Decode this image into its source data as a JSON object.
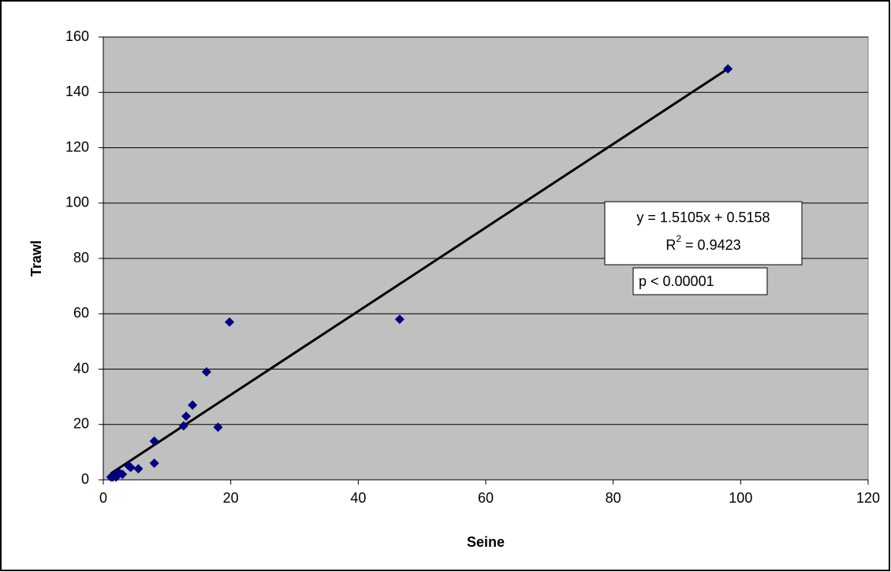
{
  "chart_data": {
    "type": "scatter",
    "x_label": "Seine",
    "y_label": "Trawl",
    "x": [
      98,
      46.5,
      19.8,
      16.2,
      14,
      13,
      12.6,
      18,
      8,
      8,
      5.5,
      4.3,
      4,
      3,
      2.5,
      2,
      1.5,
      1.2,
      2
    ],
    "series": [
      {
        "name": "Trawl",
        "color": "#000080",
        "values": [
          148.5,
          58,
          57,
          39,
          27,
          23,
          19.5,
          19,
          14,
          6,
          4,
          4.5,
          5,
          2,
          2.5,
          2,
          1,
          1,
          1
        ]
      }
    ],
    "xlim": [
      0,
      120
    ],
    "xticks": [
      0,
      20,
      40,
      60,
      80,
      100,
      120
    ],
    "ylim": [
      0,
      160
    ],
    "yticks": [
      0,
      20,
      40,
      60,
      80,
      100,
      120,
      140,
      160
    ],
    "grid": true,
    "plot_color": "#c0c0c0",
    "trendline": {
      "equation": "y = 1.5105x + 0.5158",
      "slope": 1.5105,
      "intercept": 0.5158,
      "r_squared_parts": [
        "R",
        "2",
        " = 0.9423"
      ]
    },
    "p_value_label": "p < 0.00001"
  }
}
